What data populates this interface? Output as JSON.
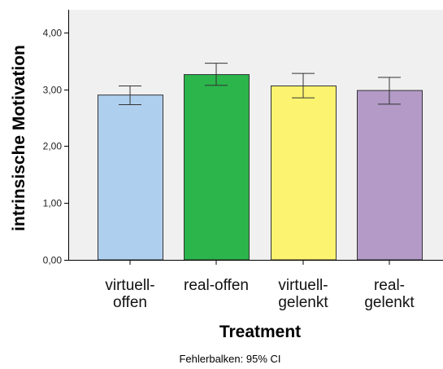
{
  "chart_data": {
    "type": "bar",
    "categories": [
      [
        "virtuell-",
        "offen"
      ],
      [
        "real-offen"
      ],
      [
        "virtuell-",
        "gelenkt"
      ],
      [
        "real-",
        "gelenkt"
      ]
    ],
    "values": [
      2.9,
      3.26,
      3.06,
      2.98
    ],
    "error_bars": [
      {
        "low": 2.73,
        "high": 3.06
      },
      {
        "low": 3.07,
        "high": 3.46
      },
      {
        "low": 2.85,
        "high": 3.28
      },
      {
        "low": 2.74,
        "high": 3.21
      }
    ],
    "bar_colors": [
      "#afcfee",
      "#2bb54a",
      "#fcf470",
      "#b39ac7"
    ],
    "ylabel": "intrinsische Motivation",
    "xlabel": "Treatment",
    "ylim": [
      0,
      4.4
    ],
    "yticks": [
      0,
      1,
      2,
      3,
      4
    ],
    "ytick_labels": [
      "0,00",
      "1,00",
      "2,00",
      "3,00",
      "4,00"
    ],
    "grid": false,
    "plot_background": "#f0f0f0",
    "footnote": "Fehlerbalken: 95% CI"
  }
}
